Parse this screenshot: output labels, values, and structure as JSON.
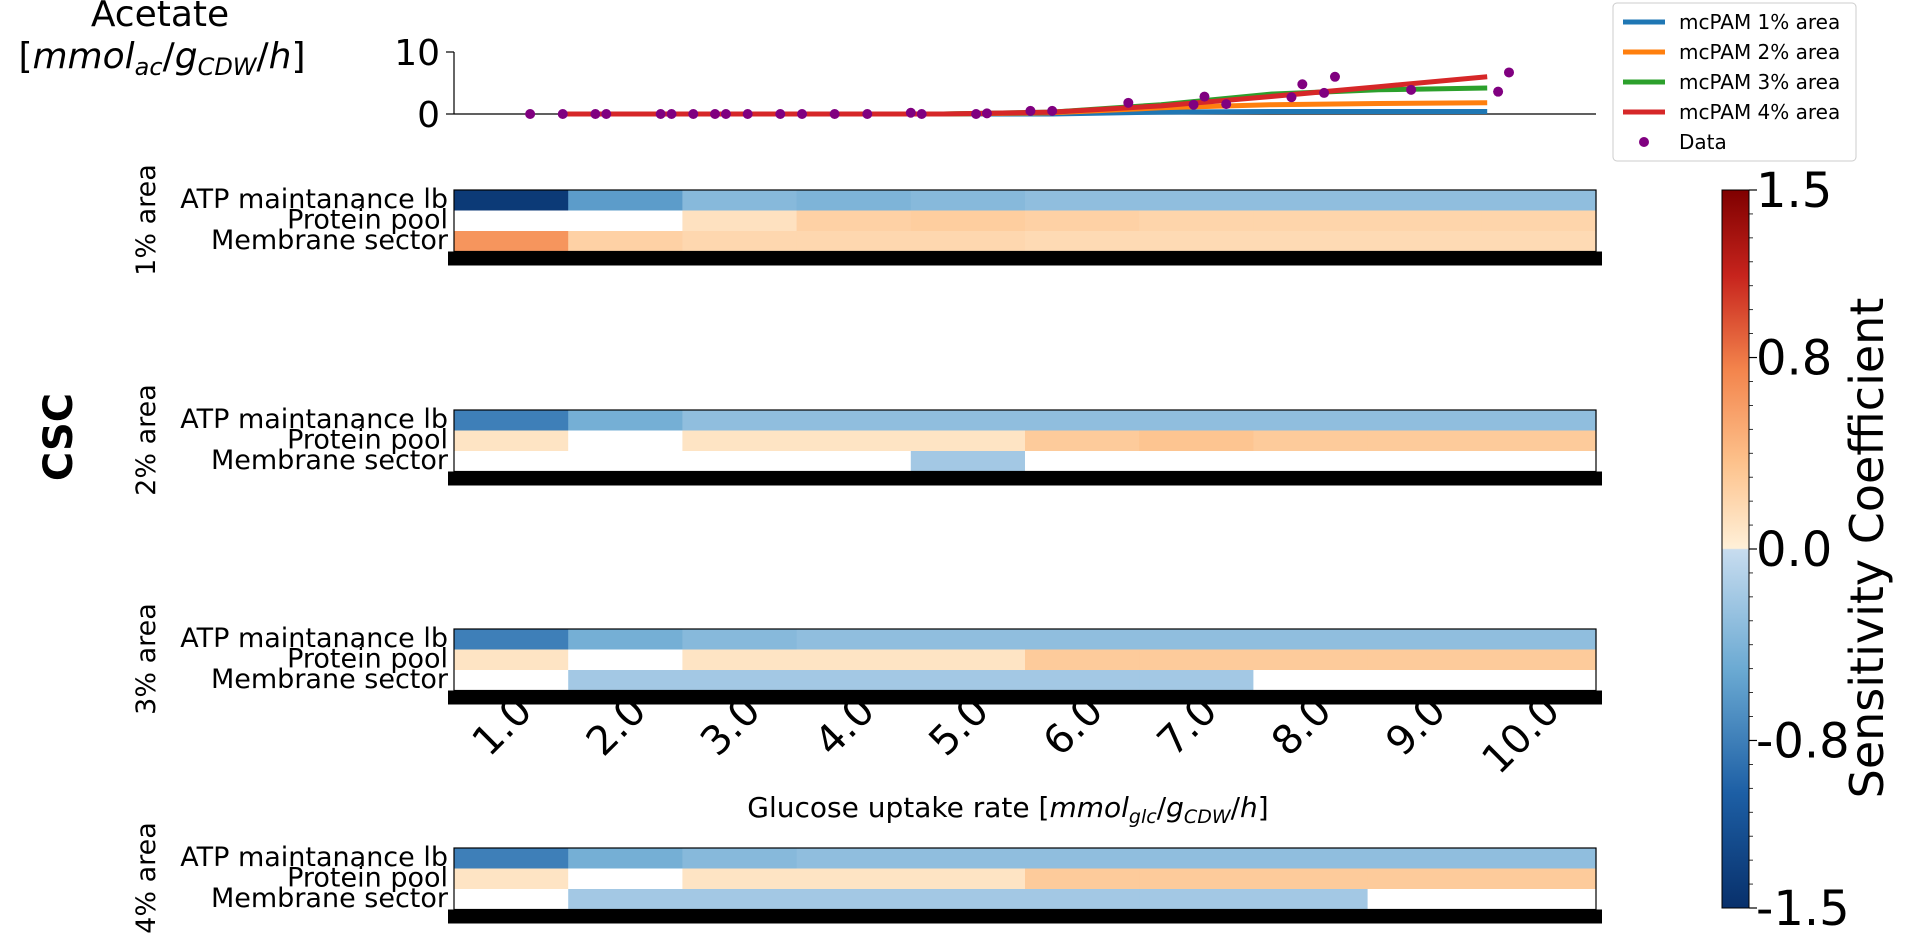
{
  "chart_data": [
    {
      "type": "line",
      "ylabel_main": "Acetate",
      "ylabel_unit_parts": {
        "open": "[",
        "q1": "mmol",
        "q1_sub": "ac",
        "slash1": "/",
        "q2": "g",
        "q2_sub": "CDW",
        "slash2": "/",
        "q3": "h",
        "close": "]"
      },
      "xlim": [
        0.5,
        11.0
      ],
      "ylim": [
        0,
        10
      ],
      "yticks": [
        "0",
        "10"
      ],
      "legend_placement": "right",
      "series": [
        {
          "name": "mcPAM 1% area",
          "color": "#1f77b4",
          "x": [
            1.5,
            2.0,
            3.0,
            4.0,
            5.0,
            6.0,
            7.0,
            8.0,
            9.0,
            10.0
          ],
          "y": [
            0,
            0,
            0,
            0,
            0,
            0,
            0.3,
            0.4,
            0.4,
            0.4
          ]
        },
        {
          "name": "mcPAM 2% area",
          "color": "#ff7f0e",
          "x": [
            1.5,
            2.0,
            3.0,
            4.0,
            5.0,
            6.0,
            7.0,
            8.0,
            9.0,
            10.0
          ],
          "y": [
            0,
            0,
            0,
            0,
            0,
            0.2,
            1.0,
            1.5,
            1.7,
            1.8
          ]
        },
        {
          "name": "mcPAM 3% area",
          "color": "#2ca02c",
          "x": [
            1.5,
            2.0,
            3.0,
            4.0,
            5.0,
            6.0,
            7.0,
            8.0,
            9.0,
            10.0
          ],
          "y": [
            0,
            0,
            0,
            0,
            0,
            0.3,
            1.5,
            3.2,
            3.9,
            4.2
          ]
        },
        {
          "name": "mcPAM 4% area",
          "color": "#d62728",
          "x": [
            1.5,
            2.0,
            3.0,
            4.0,
            5.0,
            6.0,
            7.0,
            8.0,
            9.0,
            10.0
          ],
          "y": [
            0,
            0,
            0,
            0,
            0,
            0.3,
            1.3,
            2.8,
            4.4,
            6.0
          ]
        }
      ],
      "scatter": {
        "name": "Data",
        "color": "#800080",
        "points": [
          [
            1.2,
            0.0
          ],
          [
            1.5,
            0.0
          ],
          [
            1.8,
            0.0
          ],
          [
            1.9,
            0.0
          ],
          [
            2.4,
            0.0
          ],
          [
            2.5,
            0.0
          ],
          [
            2.7,
            0.0
          ],
          [
            2.9,
            0.0
          ],
          [
            3.0,
            0.0
          ],
          [
            3.2,
            0.0
          ],
          [
            3.5,
            0.0
          ],
          [
            3.7,
            0.0
          ],
          [
            4.0,
            0.0
          ],
          [
            4.3,
            0.0
          ],
          [
            4.7,
            0.2
          ],
          [
            4.8,
            0.0
          ],
          [
            5.3,
            0.0
          ],
          [
            5.4,
            0.1
          ],
          [
            5.8,
            0.5
          ],
          [
            6.0,
            0.5
          ],
          [
            6.7,
            1.8
          ],
          [
            7.3,
            1.5
          ],
          [
            7.4,
            2.8
          ],
          [
            7.6,
            1.6
          ],
          [
            8.2,
            2.7
          ],
          [
            8.3,
            4.8
          ],
          [
            8.5,
            3.4
          ],
          [
            8.6,
            6.0
          ],
          [
            9.3,
            3.9
          ],
          [
            10.1,
            3.6
          ],
          [
            10.2,
            6.7
          ]
        ]
      }
    },
    {
      "type": "heatmap",
      "group_label": "CSC",
      "xlabel_parts": {
        "prefix": "Glucose uptake rate [",
        "q1": "mmol",
        "q1_sub": "glc",
        "slash1": "/",
        "q2": "g",
        "q2_sub": "CDW",
        "slash2": "/",
        "q3": "h",
        "close": "]"
      },
      "x_ticks": [
        "1.0",
        "2.0",
        "3.0",
        "4.0",
        "5.0",
        "6.0",
        "7.0",
        "8.0",
        "9.0",
        "10.0"
      ],
      "rows": [
        "ATP maintanance lb",
        "Protein pool",
        "Membrane sector"
      ],
      "colorbar": {
        "label": "Sensitivity Coefficient",
        "range": [
          -1.5,
          1.5
        ],
        "ticks": [
          "1.5",
          "0.8",
          "0.0",
          "-0.8",
          "-1.5"
        ]
      },
      "panels": [
        {
          "label": "1% area",
          "values": [
            [
              -1.4,
              -0.6,
              -0.35,
              -0.4,
              -0.35,
              -0.3,
              -0.3,
              -0.3,
              -0.3,
              -0.3
            ],
            [
              0.0,
              0.0,
              0.12,
              0.25,
              0.28,
              0.25,
              0.22,
              0.22,
              0.22,
              0.22
            ],
            [
              0.65,
              0.25,
              0.2,
              0.2,
              0.2,
              0.18,
              0.18,
              0.18,
              0.18,
              0.18
            ]
          ]
        },
        {
          "label": "2% area",
          "values": [
            [
              -0.8,
              -0.45,
              -0.3,
              -0.3,
              -0.3,
              -0.3,
              -0.3,
              -0.3,
              -0.3,
              -0.3
            ],
            [
              0.1,
              0.0,
              0.1,
              0.1,
              0.1,
              0.3,
              0.35,
              0.3,
              0.3,
              0.3
            ],
            [
              0.0,
              0.0,
              0.0,
              0.0,
              -0.2,
              0.0,
              0.0,
              0.0,
              0.0,
              0.0
            ]
          ]
        },
        {
          "label": "3% area",
          "values": [
            [
              -0.8,
              -0.45,
              -0.35,
              -0.3,
              -0.3,
              -0.3,
              -0.3,
              -0.3,
              -0.3,
              -0.3
            ],
            [
              0.1,
              0.0,
              0.1,
              0.1,
              0.1,
              0.3,
              0.3,
              0.3,
              0.3,
              0.3
            ],
            [
              0.0,
              -0.2,
              -0.2,
              -0.2,
              -0.2,
              -0.2,
              -0.2,
              0.0,
              0.0,
              0.0
            ]
          ]
        },
        {
          "label": "4% area",
          "values": [
            [
              -0.8,
              -0.45,
              -0.35,
              -0.3,
              -0.3,
              -0.3,
              -0.3,
              -0.3,
              -0.3,
              -0.3
            ],
            [
              0.1,
              0.0,
              0.1,
              0.1,
              0.1,
              0.3,
              0.3,
              0.3,
              0.3,
              0.3
            ],
            [
              0.0,
              -0.2,
              -0.2,
              -0.2,
              -0.2,
              -0.2,
              -0.2,
              -0.2,
              0.0,
              0.0
            ]
          ]
        }
      ]
    }
  ]
}
